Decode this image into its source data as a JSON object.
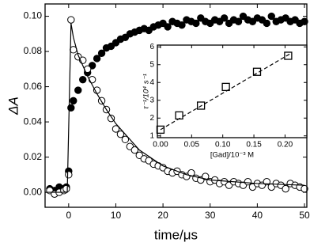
{
  "chart_data": [
    {
      "type": "scatter",
      "x_label": "time/μs",
      "y_label": "ΔA",
      "xlim": [
        -5,
        50.5
      ],
      "ylim": [
        -0.0085,
        0.107
      ],
      "xticks": [
        0,
        10,
        20,
        30,
        40,
        50
      ],
      "yticks": [
        {
          "value": 0,
          "label": "0.00"
        },
        {
          "value": 0.02,
          "label": "0.02"
        },
        {
          "value": 0.04,
          "label": "0.04"
        },
        {
          "value": 0.06,
          "label": "0.06"
        },
        {
          "value": 0.08,
          "label": "0.08"
        },
        {
          "value": 0.1,
          "label": "0.10"
        }
      ],
      "series": [
        {
          "marker": "filled",
          "color": "#000000",
          "x": [
            -4,
            -3,
            -2,
            -1,
            -0.5,
            0,
            0.5,
            1,
            2,
            3,
            4,
            5,
            6,
            7,
            8,
            9,
            10,
            11,
            12,
            13,
            14,
            15,
            16,
            17,
            18,
            19,
            20,
            21,
            22,
            23,
            24,
            25,
            26,
            27,
            28,
            29,
            30,
            31,
            32,
            33,
            34,
            35,
            36,
            37,
            38,
            39,
            40,
            41,
            42,
            43,
            44,
            45,
            46,
            47,
            48,
            49,
            50
          ],
          "values": [
            0.002,
            0.001,
            0.003,
            0.002,
            0.003,
            0.012,
            0.048,
            0.052,
            0.058,
            0.064,
            0.068,
            0.072,
            0.076,
            0.079,
            0.082,
            0.083,
            0.085,
            0.087,
            0.088,
            0.09,
            0.091,
            0.092,
            0.093,
            0.092,
            0.094,
            0.095,
            0.096,
            0.094,
            0.097,
            0.096,
            0.095,
            0.098,
            0.097,
            0.096,
            0.099,
            0.097,
            0.096,
            0.098,
            0.097,
            0.099,
            0.096,
            0.098,
            0.097,
            0.1,
            0.098,
            0.097,
            0.099,
            0.098,
            0.096,
            0.1,
            0.097,
            0.098,
            0.099,
            0.097,
            0.098,
            0.096,
            0.097
          ]
        },
        {
          "marker": "open",
          "color": "#000000",
          "x": [
            -4,
            -3,
            -2,
            -1,
            -0.5,
            0,
            0.5,
            1,
            2,
            3,
            4,
            5,
            6,
            7,
            8,
            9,
            10,
            11,
            12,
            13,
            14,
            15,
            16,
            17,
            18,
            19,
            20,
            21,
            22,
            23,
            24,
            25,
            26,
            27,
            28,
            29,
            30,
            31,
            32,
            33,
            34,
            35,
            36,
            37,
            38,
            39,
            40,
            41,
            42,
            43,
            44,
            45,
            46,
            47,
            48,
            49,
            50
          ],
          "values": [
            0.001,
            -0.001,
            0,
            0.001,
            0.002,
            0.01,
            0.098,
            0.081,
            0.077,
            0.075,
            0.07,
            0.064,
            0.058,
            0.052,
            0.047,
            0.042,
            0.036,
            0.033,
            0.03,
            0.026,
            0.024,
            0.021,
            0.019,
            0.018,
            0.016,
            0.015,
            0.014,
            0.012,
            0.011,
            0.012,
            0.01,
            0.009,
            0.011,
            0.008,
            0.007,
            0.009,
            0.006,
            0.007,
            0.005,
            0.006,
            0.004,
            0.006,
            0.005,
            0.004,
            0.006,
            0.003,
            0.005,
            0.004,
            0.006,
            0.003,
            0.005,
            0.004,
            0.002,
            0.005,
            0.004,
            0.003,
            0.002
          ]
        },
        {
          "line_style": "solid",
          "color": "#000000",
          "x": [
            -5,
            -0.3,
            0.5,
            1,
            2,
            4,
            6,
            8,
            10,
            15,
            20,
            25,
            30,
            40,
            50
          ],
          "values": [
            0,
            0,
            0.096,
            0.088,
            0.078,
            0.066,
            0.056,
            0.047,
            0.039,
            0.024,
            0.015,
            0.01,
            0.007,
            0.005,
            0.004
          ]
        }
      ]
    },
    {
      "type": "scatter",
      "x_label": "[Gad]/10⁻³ M",
      "y_label": "τ⁻¹/10⁴ s⁻¹",
      "xlim": [
        -0.005,
        0.235
      ],
      "ylim": [
        0.9,
        6.1
      ],
      "xticks": [
        {
          "value": 0,
          "label": "0.00"
        },
        {
          "value": 0.05,
          "label": "0.05"
        },
        {
          "value": 0.1,
          "label": "0.10"
        },
        {
          "value": 0.15,
          "label": "0.15"
        },
        {
          "value": 0.2,
          "label": "0.20"
        }
      ],
      "yticks": [
        1,
        2,
        3,
        4,
        5,
        6
      ],
      "series": [
        {
          "line_style": "dashed",
          "color": "#000000",
          "x": [
            0,
            0.21
          ],
          "values": [
            1.35,
            5.65
          ]
        },
        {
          "marker": "square",
          "color": "#000000",
          "x": [
            0,
            0.03,
            0.065,
            0.105,
            0.155,
            0.205
          ],
          "values": [
            1.35,
            2.15,
            2.7,
            3.75,
            4.6,
            5.5
          ]
        }
      ]
    }
  ]
}
